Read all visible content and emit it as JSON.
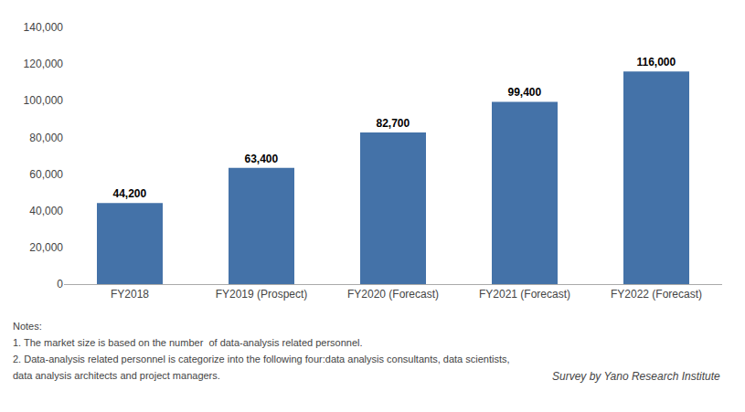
{
  "chart_data": {
    "type": "bar",
    "categories": [
      "FY2018",
      "FY2019 (Prospect)",
      "FY2020 (Forecast)",
      "FY2021 (Forecast)",
      "FY2022 (Forecast)"
    ],
    "values": [
      44200,
      63400,
      82700,
      99400,
      116000
    ],
    "value_labels": [
      "44,200",
      "63,400",
      "82,700",
      "99,400",
      "116,000"
    ],
    "data_labels": true,
    "color": "#4472a8",
    "ylim": [
      0,
      140000
    ],
    "yticks": [
      0,
      {
        "value": 20000,
        "label": "20,000"
      },
      {
        "value": 40000,
        "label": "40,000"
      },
      {
        "value": 60000,
        "label": "60,000"
      },
      {
        "value": 80000,
        "label": "80,000"
      },
      {
        "value": 100000,
        "label": "100,000"
      },
      {
        "value": 120000,
        "label": "120,000"
      },
      {
        "value": 140000,
        "label": "140,000"
      }
    ],
    "grid": false,
    "annotations": [
      "Notes:",
      "1. The market size is based on the number  of data-analysis related personnel.",
      "2. Data-analysis related personnel is categorize into the following four:data analysis consultants, data scientists,",
      "data analysis architects and project managers."
    ],
    "source": "Survey by Yano Research Institute"
  }
}
